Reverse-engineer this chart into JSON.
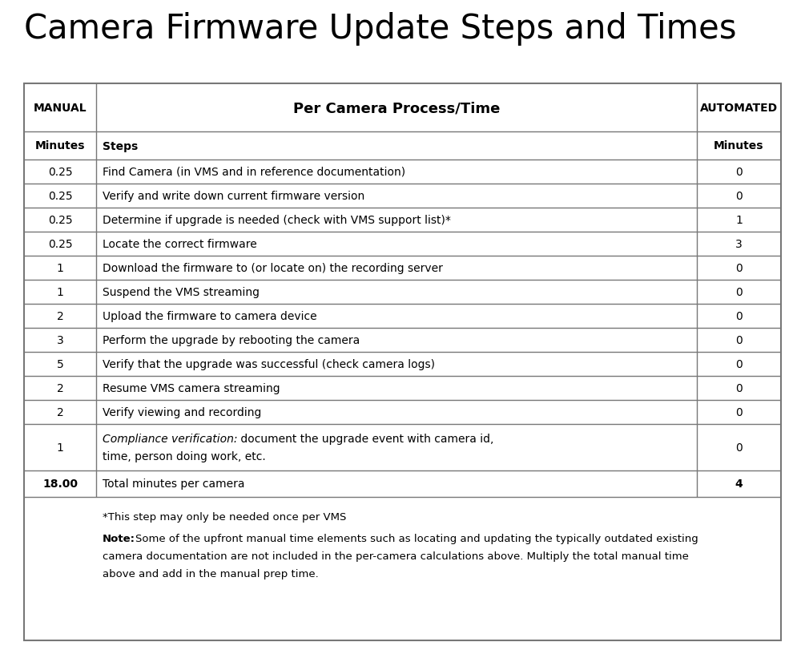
{
  "title": "Camera Firmware Update Steps and Times",
  "title_fontsize": 30,
  "col1_header": "MANUAL",
  "col2_header": "Per Camera Process/Time",
  "col3_header": "AUTOMATED",
  "subheader_col1": "Minutes",
  "subheader_col2": "Steps",
  "subheader_col3": "Minutes",
  "rows": [
    {
      "manual": "0.25",
      "step": "Find Camera (in VMS and in reference documentation)",
      "auto": "0"
    },
    {
      "manual": "0.25",
      "step": "Verify and write down current firmware version",
      "auto": "0"
    },
    {
      "manual": "0.25",
      "step": "Determine if upgrade is needed (check with VMS support list)*",
      "auto": "1"
    },
    {
      "manual": "0.25",
      "step": "Locate the correct firmware",
      "auto": "3"
    },
    {
      "manual": "1",
      "step": "Download the firmware to (or locate on) the recording server",
      "auto": "0"
    },
    {
      "manual": "1",
      "step": "Suspend the VMS streaming",
      "auto": "0"
    },
    {
      "manual": "2",
      "step": "Upload the firmware to camera device",
      "auto": "0"
    },
    {
      "manual": "3",
      "step": "Perform the upgrade by rebooting the camera",
      "auto": "0"
    },
    {
      "manual": "5",
      "step": "Verify that the upgrade was successful (check camera logs)",
      "auto": "0"
    },
    {
      "manual": "2",
      "step": "Resume VMS camera streaming",
      "auto": "0"
    },
    {
      "manual": "2",
      "step": "Verify viewing and recording",
      "auto": "0"
    },
    {
      "manual": "1",
      "step_line1_italic": "Compliance verification:",
      "step_line1_rest": " document the upgrade event with camera id,",
      "step_line2": "time, person doing work, etc.",
      "auto": "0"
    }
  ],
  "total_manual": "18.00",
  "total_step": "Total minutes per camera",
  "total_auto": "4",
  "footnote1": "*This step may only be needed once per VMS",
  "footnote2_bold": "Note:",
  "footnote2_rest": " Some of the upfront manual time elements such as locating and updating the typically outdated existing camera documentation are not included in the per-camera calculations above. Multiply the total manual time above and add in the manual prep time.",
  "bg_color": "#ffffff",
  "text_color": "#000000",
  "line_color": "#777777"
}
